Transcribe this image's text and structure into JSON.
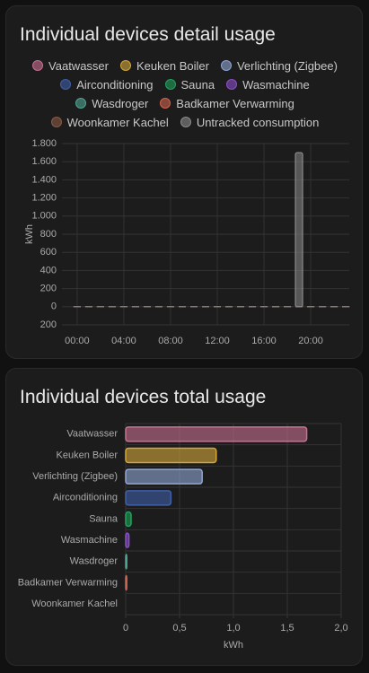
{
  "chart_data": [
    {
      "type": "bar",
      "stacked": true,
      "title": "Individual devices detail usage",
      "ylabel": "kWh",
      "x": [
        0,
        1,
        2,
        3,
        4,
        5,
        6,
        7,
        8,
        9,
        10,
        11,
        12,
        13,
        14,
        15,
        16,
        17,
        18,
        19,
        20,
        21,
        22,
        23
      ],
      "xlim": [
        -1.3,
        23.3
      ],
      "xticks": [
        {
          "value": 0,
          "label": "00:00"
        },
        {
          "value": 4,
          "label": "04:00"
        },
        {
          "value": 8,
          "label": "08:00"
        },
        {
          "value": 12,
          "label": "12:00"
        },
        {
          "value": 16,
          "label": "16:00"
        },
        {
          "value": 20,
          "label": "20:00"
        }
      ],
      "ylim": [
        -200,
        1800
      ],
      "yticks": [
        {
          "value": 1800,
          "label": "1.800"
        },
        {
          "value": 1600,
          "label": "1.600"
        },
        {
          "value": 1400,
          "label": "1.400"
        },
        {
          "value": 1200,
          "label": "1.200"
        },
        {
          "value": 1000,
          "label": "1.000"
        },
        800,
        600,
        400,
        200,
        0,
        {
          "value": -200,
          "label": "200"
        }
      ],
      "grid": true,
      "series": [
        {
          "name": "Vaatwasser",
          "color": "#c8708f",
          "values": [
            0,
            0,
            0,
            0,
            0,
            0,
            0,
            0,
            0,
            0,
            0,
            0,
            0,
            0,
            0,
            0,
            0,
            0,
            0,
            0,
            0,
            0,
            0,
            0
          ]
        },
        {
          "name": "Keuken Boiler",
          "color": "#d4a63a",
          "values": [
            0,
            0,
            0,
            0,
            0,
            0,
            0,
            0,
            0,
            0,
            0,
            0,
            0,
            0,
            0,
            0,
            0,
            0,
            0,
            0,
            0,
            0,
            0,
            0
          ]
        },
        {
          "name": "Verlichting (Zigbee)",
          "color": "#8fa6d6",
          "values": [
            0,
            0,
            0,
            0,
            0,
            0,
            0,
            0,
            0,
            0,
            0,
            0,
            0,
            0,
            0,
            0,
            0,
            0,
            0,
            0,
            0,
            0,
            0,
            0
          ]
        },
        {
          "name": "Airconditioning",
          "color": "#3f5fa8",
          "values": [
            0,
            0,
            0,
            0,
            0,
            0,
            0,
            0,
            0,
            0,
            0,
            0,
            0,
            0,
            0,
            0,
            0,
            0,
            0,
            0,
            0,
            0,
            0,
            0
          ]
        },
        {
          "name": "Sauna",
          "color": "#1fa35b",
          "values": [
            0,
            0,
            0,
            0,
            0,
            0,
            0,
            0,
            0,
            0,
            0,
            0,
            0,
            0,
            0,
            0,
            0,
            0,
            0,
            0,
            0,
            0,
            0,
            0
          ]
        },
        {
          "name": "Wasmachine",
          "color": "#8a4fc9",
          "values": [
            0,
            0,
            0,
            0,
            0,
            0,
            0,
            0,
            0,
            0,
            0,
            0,
            0,
            0,
            0,
            0,
            0,
            0,
            0,
            0,
            0,
            0,
            0,
            0
          ]
        },
        {
          "name": "Wasdroger",
          "color": "#4fa593",
          "values": [
            0,
            0,
            0,
            0,
            0,
            0,
            0,
            0,
            0,
            0,
            0,
            0,
            0,
            0,
            0,
            0,
            0,
            0,
            0,
            0,
            0,
            0,
            0,
            0
          ]
        },
        {
          "name": "Badkamer Verwarming",
          "color": "#d0644f",
          "values": [
            0,
            0,
            0,
            0,
            0,
            0,
            0,
            0,
            0,
            0,
            0,
            0,
            0,
            0,
            0,
            0,
            0,
            0,
            0,
            0,
            0,
            0,
            0,
            0
          ]
        },
        {
          "name": "Woonkamer Kachel",
          "color": "#8a5a44",
          "values": [
            0,
            0,
            0,
            0,
            0,
            0,
            0,
            0,
            0,
            0,
            0,
            0,
            0,
            0,
            0,
            0,
            0,
            0,
            0,
            0,
            0,
            0,
            0,
            0
          ]
        },
        {
          "name": "Untracked consumption",
          "color": "#8a8a8a",
          "values": [
            0,
            0,
            0,
            0,
            0,
            0,
            0,
            0,
            0,
            0,
            0,
            0,
            0,
            0,
            0,
            0,
            0,
            0,
            0,
            1700,
            0,
            0,
            0,
            0
          ]
        }
      ]
    },
    {
      "type": "bar",
      "orientation": "horizontal",
      "title": "Individual devices total usage",
      "xlabel": "kWh",
      "categories": [
        "Vaatwasser",
        "Keuken Boiler",
        "Verlichting (Zigbee)",
        "Airconditioning",
        "Sauna",
        "Wasmachine",
        "Wasdroger",
        "Badkamer Verwarming",
        "Woonkamer Kachel"
      ],
      "values": [
        1.68,
        0.84,
        0.71,
        0.42,
        0.05,
        0.03,
        0.01,
        0.01,
        0
      ],
      "colors": [
        "#c8708f",
        "#d4a63a",
        "#8fa6d6",
        "#3f5fa8",
        "#1fa35b",
        "#8a4fc9",
        "#4fa593",
        "#d0644f",
        "#8a5a44"
      ],
      "xlim": [
        0,
        2
      ],
      "xticks": [
        0,
        {
          "value": 0.5,
          "label": "0,5"
        },
        {
          "value": 1,
          "label": "1,0"
        },
        {
          "value": 1.5,
          "label": "1,5"
        },
        {
          "value": 2,
          "label": "2,0"
        }
      ],
      "grid": true
    }
  ]
}
